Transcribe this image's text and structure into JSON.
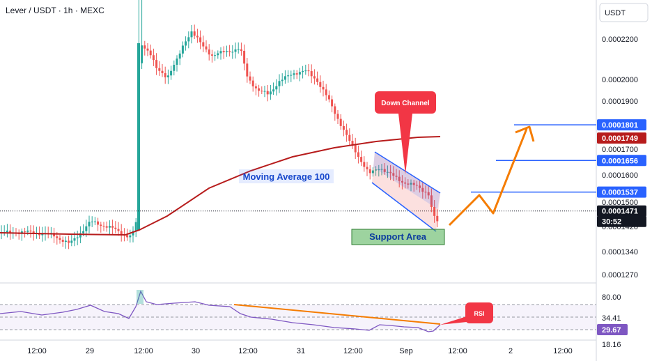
{
  "header": {
    "title": "Lever / USDT · 1h · MEXC",
    "currency_button": "USDT"
  },
  "colors": {
    "up": "#26a69a",
    "down": "#ef5350",
    "ma": "#b71c1c",
    "rsi": "#7e57c2",
    "arrow": "#f57c00",
    "level": "#2962ff"
  },
  "chart_data": {
    "type": "candlestick",
    "price_axis": {
      "ticks": [
        "0.0002200",
        "0.0002000",
        "0.0001900",
        "0.0001700",
        "0.0001600",
        "0.0001500",
        "0.0001420",
        "0.0001340",
        "0.0001270"
      ],
      "tick_values": [
        0.00022,
        0.0002,
        0.00019,
        0.00017,
        0.00016,
        0.00015,
        0.000142,
        0.000134,
        0.000127
      ]
    },
    "time_axis": {
      "ticks": [
        "12:00",
        "29",
        "12:00",
        "30",
        "12:00",
        "31",
        "12:00",
        "Sep",
        "12:00",
        "2",
        "12:00"
      ]
    },
    "series": [
      {
        "name": "Moving Average 100",
        "kind": "moving-average"
      },
      {
        "name": "RSI",
        "kind": "oscillator"
      }
    ],
    "price_labels": [
      {
        "text": "0.0001801",
        "value": 0.0001801,
        "style": "blue"
      },
      {
        "text": "0.0001749",
        "value": 0.0001749,
        "style": "red"
      },
      {
        "text": "0.0001656",
        "value": 0.0001656,
        "style": "blue"
      },
      {
        "text": "0.0001537",
        "value": 0.0001537,
        "style": "blue"
      },
      {
        "text": "0.0001471",
        "value": 0.0001471,
        "style": "black"
      },
      {
        "text": "30:52",
        "value": null,
        "style": "black"
      }
    ],
    "horizontal_levels": [
      0.0001801,
      0.0001656,
      0.0001537
    ],
    "current_price": 0.0001471,
    "rsi": {
      "ticks": [
        "80.00",
        "18.16"
      ],
      "tick_values": [
        80,
        18.16
      ],
      "labels": [
        {
          "text": "34.41",
          "value": 34.41,
          "style": "plain"
        },
        {
          "text": "29.67",
          "value": 29.67,
          "style": "purple"
        }
      ]
    },
    "annotations": {
      "down_channel": "Down Channel",
      "moving_average": "Moving Average 100",
      "support": "Support Area",
      "rsi": "RSI"
    }
  }
}
